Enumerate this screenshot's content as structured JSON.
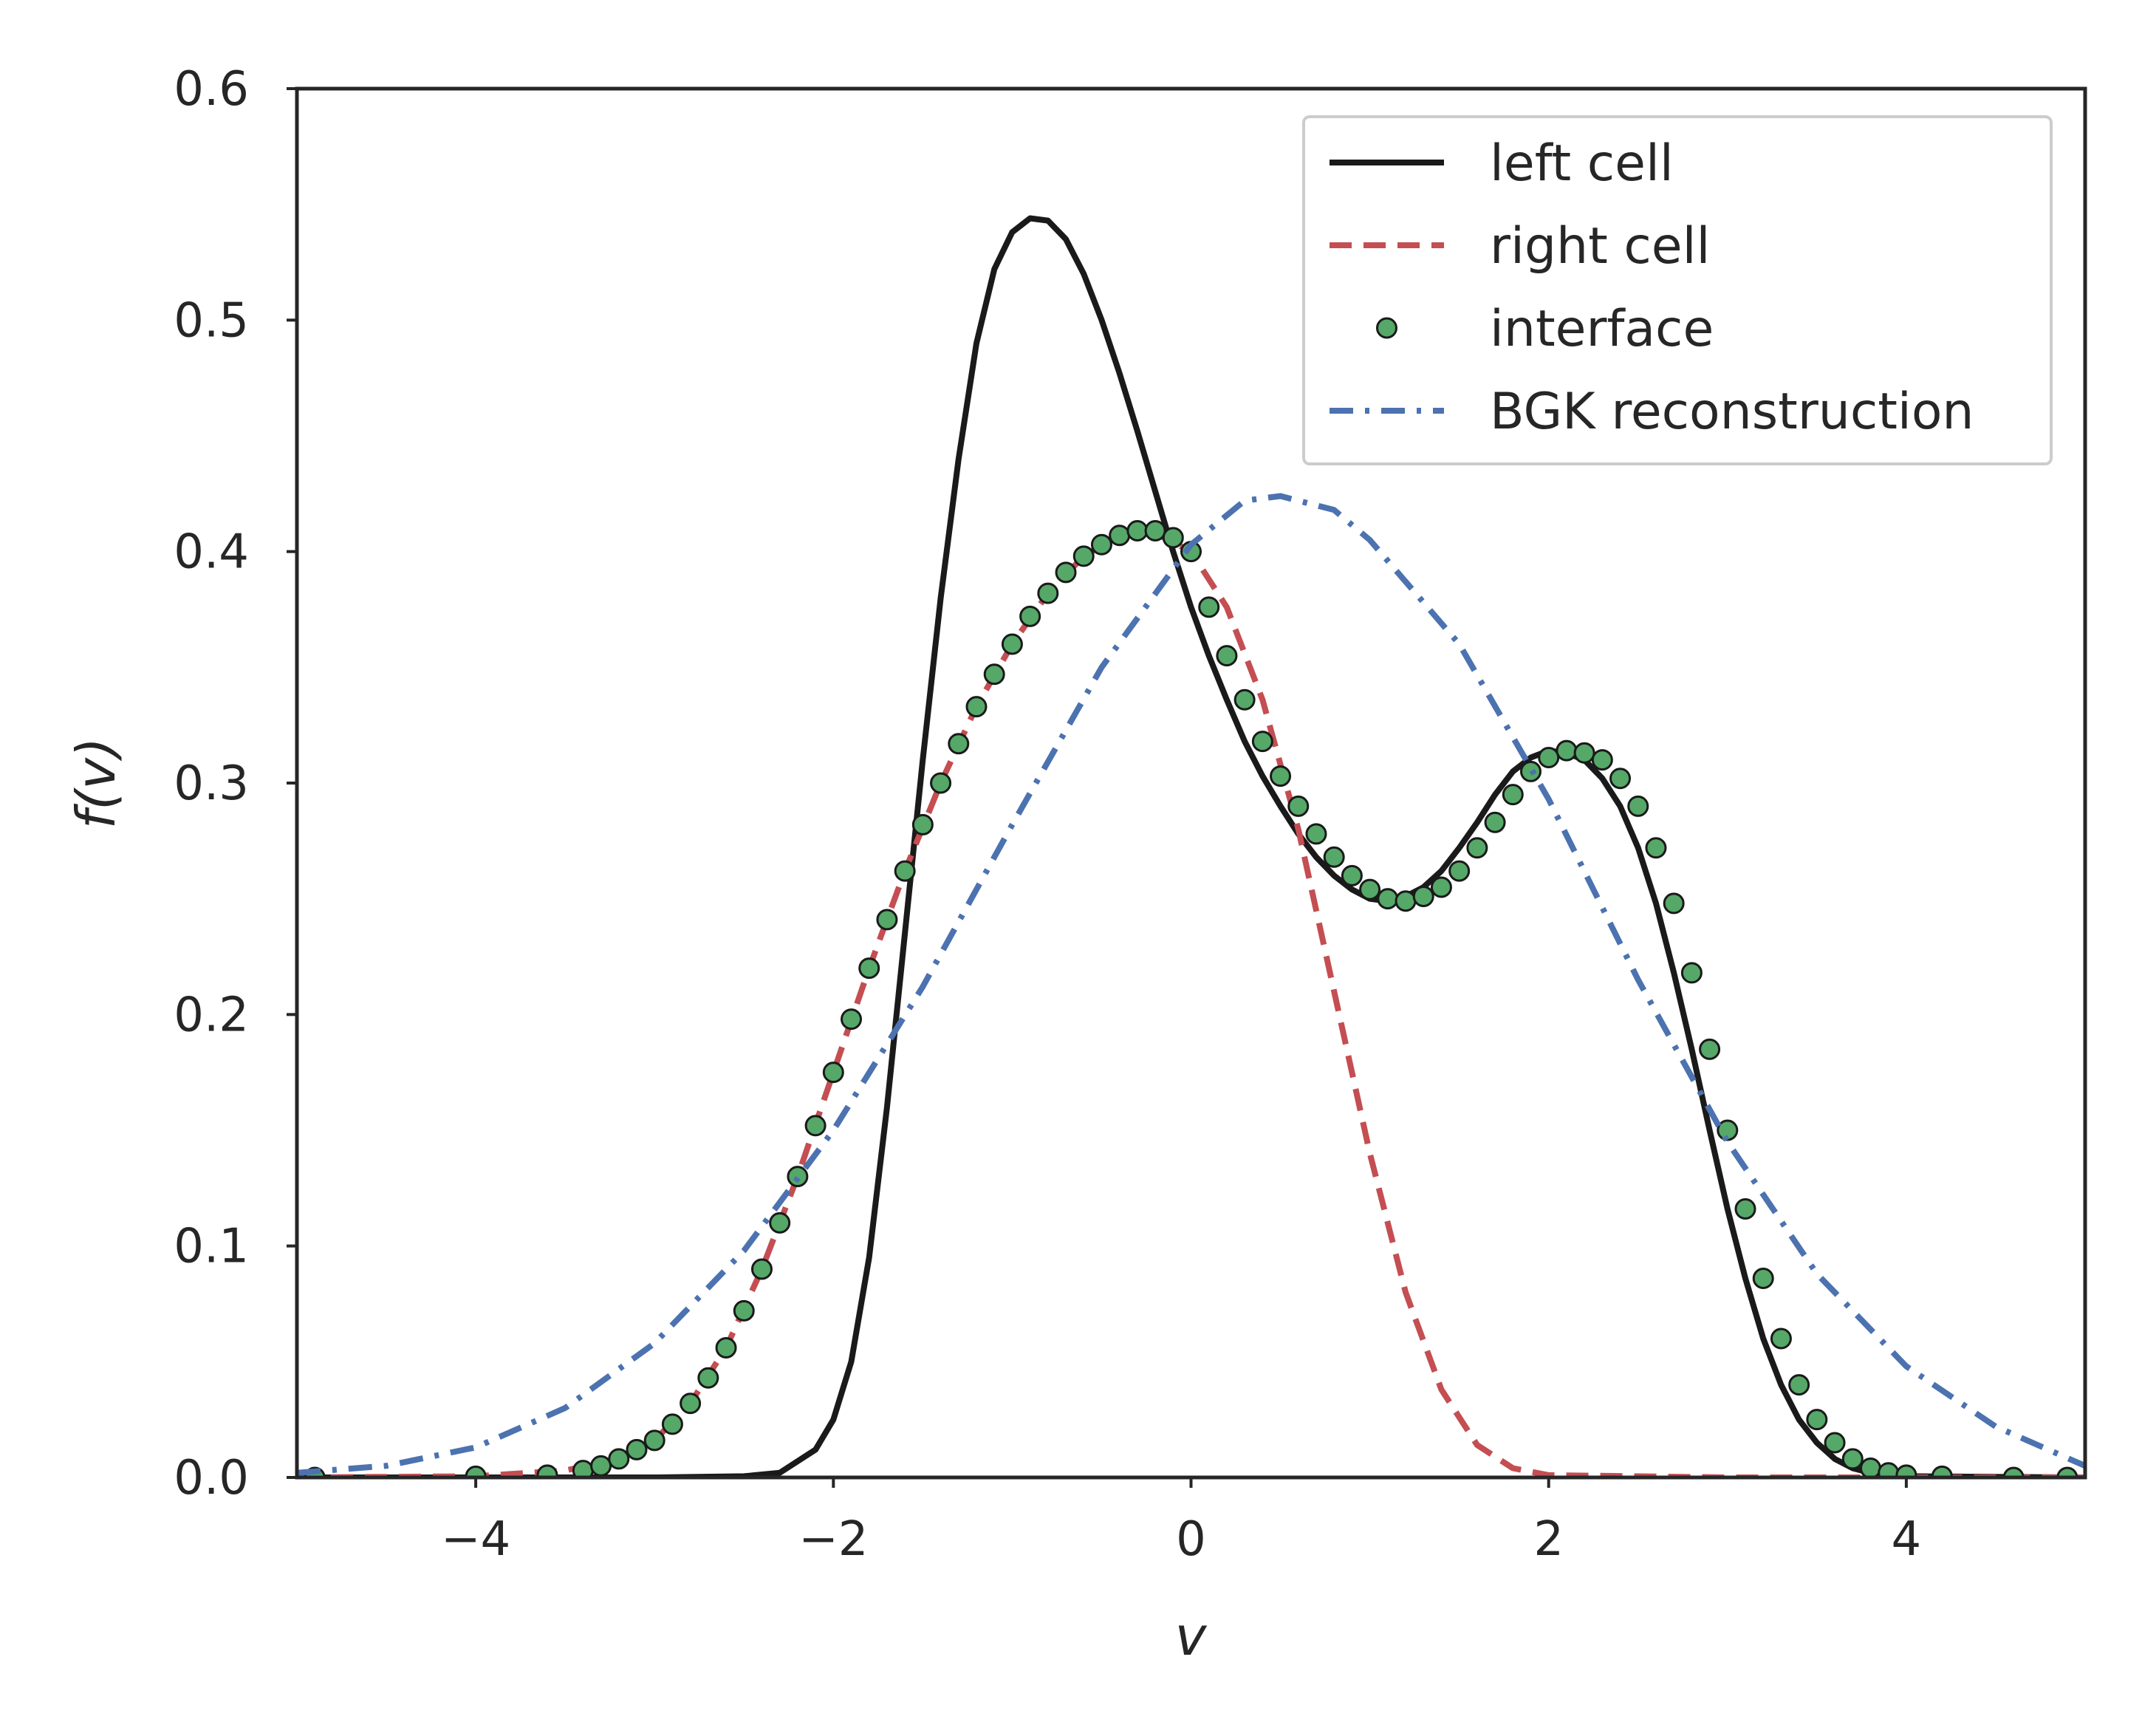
{
  "chart_data": {
    "type": "line",
    "title": "",
    "xlabel": "v",
    "ylabel": "f(v)",
    "xlim": [
      -5,
      5
    ],
    "ylim": [
      0,
      0.6
    ],
    "grid": false,
    "legend_position": "top-right",
    "x_ticks": [
      {
        "value": -4,
        "label": "−4"
      },
      {
        "value": -2,
        "label": "−2"
      },
      {
        "value": 0,
        "label": "0"
      },
      {
        "value": 2,
        "label": "2"
      },
      {
        "value": 4,
        "label": "4"
      }
    ],
    "y_ticks": [
      {
        "value": 0.0,
        "label": "0.0"
      },
      {
        "value": 0.1,
        "label": "0.1"
      },
      {
        "value": 0.2,
        "label": "0.2"
      },
      {
        "value": 0.3,
        "label": "0.3"
      },
      {
        "value": 0.4,
        "label": "0.4"
      },
      {
        "value": 0.5,
        "label": "0.5"
      },
      {
        "value": 0.6,
        "label": "0.6"
      }
    ],
    "series": [
      {
        "name": "left cell",
        "style": "solid",
        "color": "#1a1a1a",
        "points": [
          [
            -5.0,
            0.0
          ],
          [
            -3.0,
            0.0
          ],
          [
            -2.5,
            0.0005
          ],
          [
            -2.3,
            0.002
          ],
          [
            -2.1,
            0.012
          ],
          [
            -2.0,
            0.025
          ],
          [
            -1.9,
            0.05
          ],
          [
            -1.8,
            0.095
          ],
          [
            -1.7,
            0.16
          ],
          [
            -1.6,
            0.235
          ],
          [
            -1.5,
            0.31
          ],
          [
            -1.4,
            0.38
          ],
          [
            -1.3,
            0.44
          ],
          [
            -1.2,
            0.49
          ],
          [
            -1.1,
            0.522
          ],
          [
            -1.0,
            0.538
          ],
          [
            -0.9,
            0.544
          ],
          [
            -0.8,
            0.543
          ],
          [
            -0.7,
            0.535
          ],
          [
            -0.6,
            0.52
          ],
          [
            -0.5,
            0.5
          ],
          [
            -0.4,
            0.477
          ],
          [
            -0.3,
            0.452
          ],
          [
            -0.2,
            0.426
          ],
          [
            -0.1,
            0.4
          ],
          [
            0.0,
            0.376
          ],
          [
            0.1,
            0.355
          ],
          [
            0.2,
            0.336
          ],
          [
            0.3,
            0.318
          ],
          [
            0.4,
            0.303
          ],
          [
            0.5,
            0.29
          ],
          [
            0.6,
            0.278
          ],
          [
            0.7,
            0.268
          ],
          [
            0.8,
            0.26
          ],
          [
            0.9,
            0.254
          ],
          [
            1.0,
            0.25
          ],
          [
            1.1,
            0.249
          ],
          [
            1.2,
            0.251
          ],
          [
            1.3,
            0.255
          ],
          [
            1.4,
            0.262
          ],
          [
            1.5,
            0.272
          ],
          [
            1.6,
            0.283
          ],
          [
            1.7,
            0.295
          ],
          [
            1.8,
            0.305
          ],
          [
            1.9,
            0.311
          ],
          [
            2.0,
            0.314
          ],
          [
            2.1,
            0.313
          ],
          [
            2.2,
            0.31
          ],
          [
            2.3,
            0.302
          ],
          [
            2.4,
            0.29
          ],
          [
            2.5,
            0.272
          ],
          [
            2.6,
            0.248
          ],
          [
            2.7,
            0.218
          ],
          [
            2.8,
            0.185
          ],
          [
            2.9,
            0.15
          ],
          [
            3.0,
            0.116
          ],
          [
            3.1,
            0.086
          ],
          [
            3.2,
            0.06
          ],
          [
            3.3,
            0.04
          ],
          [
            3.4,
            0.025
          ],
          [
            3.5,
            0.015
          ],
          [
            3.6,
            0.008
          ],
          [
            3.7,
            0.004
          ],
          [
            3.8,
            0.002
          ],
          [
            4.0,
            0.0005
          ],
          [
            5.0,
            0.0
          ]
        ]
      },
      {
        "name": "right cell",
        "style": "dashed",
        "color": "#c44e52",
        "points": [
          [
            -5.0,
            0.0
          ],
          [
            -4.0,
            0.0005
          ],
          [
            -3.5,
            0.003
          ],
          [
            -3.2,
            0.008
          ],
          [
            -3.0,
            0.016
          ],
          [
            -2.8,
            0.032
          ],
          [
            -2.6,
            0.056
          ],
          [
            -2.4,
            0.09
          ],
          [
            -2.2,
            0.13
          ],
          [
            -2.0,
            0.175
          ],
          [
            -1.8,
            0.22
          ],
          [
            -1.6,
            0.262
          ],
          [
            -1.4,
            0.3
          ],
          [
            -1.2,
            0.333
          ],
          [
            -1.0,
            0.36
          ],
          [
            -0.8,
            0.382
          ],
          [
            -0.6,
            0.398
          ],
          [
            -0.4,
            0.407
          ],
          [
            -0.2,
            0.408
          ],
          [
            0.0,
            0.4
          ],
          [
            0.2,
            0.376
          ],
          [
            0.4,
            0.336
          ],
          [
            0.6,
            0.28
          ],
          [
            0.8,
            0.21
          ],
          [
            1.0,
            0.14
          ],
          [
            1.2,
            0.08
          ],
          [
            1.4,
            0.038
          ],
          [
            1.6,
            0.014
          ],
          [
            1.8,
            0.004
          ],
          [
            2.0,
            0.001
          ],
          [
            3.0,
            0.0
          ],
          [
            5.0,
            0.0
          ]
        ]
      },
      {
        "name": "interface",
        "style": "markers",
        "color": "#55a868",
        "edge_color": "#1a1a1a",
        "points": [
          [
            -4.9,
            0.0
          ],
          [
            -4.0,
            0.0005
          ],
          [
            -3.6,
            0.001
          ],
          [
            -3.4,
            0.003
          ],
          [
            -3.3,
            0.005
          ],
          [
            -3.2,
            0.008
          ],
          [
            -3.1,
            0.012
          ],
          [
            -3.0,
            0.016
          ],
          [
            -2.9,
            0.023
          ],
          [
            -2.8,
            0.032
          ],
          [
            -2.7,
            0.043
          ],
          [
            -2.6,
            0.056
          ],
          [
            -2.5,
            0.072
          ],
          [
            -2.4,
            0.09
          ],
          [
            -2.3,
            0.11
          ],
          [
            -2.2,
            0.13
          ],
          [
            -2.1,
            0.152
          ],
          [
            -2.0,
            0.175
          ],
          [
            -1.9,
            0.198
          ],
          [
            -1.8,
            0.22
          ],
          [
            -1.7,
            0.241
          ],
          [
            -1.6,
            0.262
          ],
          [
            -1.5,
            0.282
          ],
          [
            -1.4,
            0.3
          ],
          [
            -1.3,
            0.317
          ],
          [
            -1.2,
            0.333
          ],
          [
            -1.1,
            0.347
          ],
          [
            -1.0,
            0.36
          ],
          [
            -0.9,
            0.372
          ],
          [
            -0.8,
            0.382
          ],
          [
            -0.7,
            0.391
          ],
          [
            -0.6,
            0.398
          ],
          [
            -0.5,
            0.403
          ],
          [
            -0.4,
            0.407
          ],
          [
            -0.3,
            0.409
          ],
          [
            -0.2,
            0.409
          ],
          [
            -0.1,
            0.406
          ],
          [
            0.0,
            0.4
          ],
          [
            0.1,
            0.376
          ],
          [
            0.2,
            0.355
          ],
          [
            0.3,
            0.336
          ],
          [
            0.4,
            0.318
          ],
          [
            0.5,
            0.303
          ],
          [
            0.6,
            0.29
          ],
          [
            0.7,
            0.278
          ],
          [
            0.8,
            0.268
          ],
          [
            0.9,
            0.26
          ],
          [
            1.0,
            0.254
          ],
          [
            1.1,
            0.25
          ],
          [
            1.2,
            0.249
          ],
          [
            1.3,
            0.251
          ],
          [
            1.4,
            0.255
          ],
          [
            1.5,
            0.262
          ],
          [
            1.6,
            0.272
          ],
          [
            1.7,
            0.283
          ],
          [
            1.8,
            0.295
          ],
          [
            1.9,
            0.305
          ],
          [
            2.0,
            0.311
          ],
          [
            2.1,
            0.314
          ],
          [
            2.2,
            0.313
          ],
          [
            2.3,
            0.31
          ],
          [
            2.4,
            0.302
          ],
          [
            2.5,
            0.29
          ],
          [
            2.6,
            0.272
          ],
          [
            2.7,
            0.248
          ],
          [
            2.8,
            0.218
          ],
          [
            2.9,
            0.185
          ],
          [
            3.0,
            0.15
          ],
          [
            3.1,
            0.116
          ],
          [
            3.2,
            0.086
          ],
          [
            3.3,
            0.06
          ],
          [
            3.4,
            0.04
          ],
          [
            3.5,
            0.025
          ],
          [
            3.6,
            0.015
          ],
          [
            3.7,
            0.008
          ],
          [
            3.8,
            0.004
          ],
          [
            3.9,
            0.002
          ],
          [
            4.0,
            0.001
          ],
          [
            4.2,
            0.0005
          ],
          [
            4.6,
            0.0
          ],
          [
            4.9,
            0.0
          ]
        ]
      },
      {
        "name": "BGK reconstruction",
        "style": "dashdot",
        "color": "#4c72b0",
        "points": [
          [
            -5.0,
            0.002
          ],
          [
            -4.5,
            0.005
          ],
          [
            -4.0,
            0.013
          ],
          [
            -3.5,
            0.03
          ],
          [
            -3.0,
            0.058
          ],
          [
            -2.5,
            0.098
          ],
          [
            -2.0,
            0.15
          ],
          [
            -1.5,
            0.212
          ],
          [
            -1.0,
            0.282
          ],
          [
            -0.5,
            0.35
          ],
          [
            0.0,
            0.403
          ],
          [
            0.3,
            0.422
          ],
          [
            0.5,
            0.424
          ],
          [
            0.8,
            0.418
          ],
          [
            1.0,
            0.405
          ],
          [
            1.5,
            0.36
          ],
          [
            2.0,
            0.293
          ],
          [
            2.5,
            0.215
          ],
          [
            3.0,
            0.145
          ],
          [
            3.5,
            0.088
          ],
          [
            4.0,
            0.048
          ],
          [
            4.5,
            0.022
          ],
          [
            5.0,
            0.005
          ]
        ]
      }
    ]
  }
}
